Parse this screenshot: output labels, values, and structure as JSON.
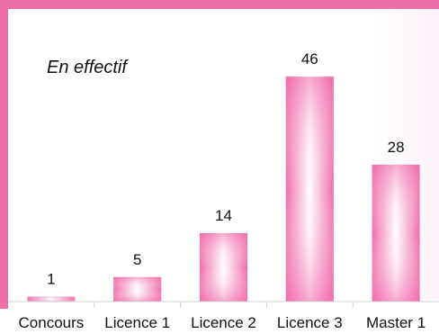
{
  "chart_data": {
    "type": "bar",
    "title": "",
    "subtitle": "En effectif",
    "xlabel": "",
    "ylabel": "",
    "categories": [
      "Concours",
      "Licence 1",
      "Licence 2",
      "Licence 3",
      "Master 1"
    ],
    "values": [
      1,
      5,
      14,
      46,
      28
    ],
    "ylim": [
      0,
      58
    ],
    "grid": false,
    "legend": "none",
    "colors": {
      "frame": "#ee6fa8",
      "bar_edge": "#f06aaa",
      "bar_center": "#ffffff",
      "plot_bg_right": "#fdf2fb",
      "axis": "#d0d0d0"
    }
  }
}
